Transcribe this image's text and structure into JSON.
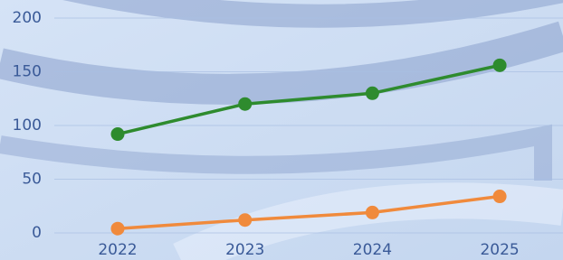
{
  "chart_data": {
    "type": "line",
    "categories": [
      "2022",
      "2023",
      "2024",
      "2025"
    ],
    "series": [
      {
        "color": "#2e8b2e",
        "values": [
          92,
          120,
          130,
          156
        ]
      },
      {
        "color": "#f08a3c",
        "values": [
          4,
          12,
          19,
          34
        ]
      }
    ],
    "ylim": [
      0,
      200
    ],
    "yticks": [
      0,
      50,
      100,
      150,
      200
    ],
    "grid": true
  }
}
